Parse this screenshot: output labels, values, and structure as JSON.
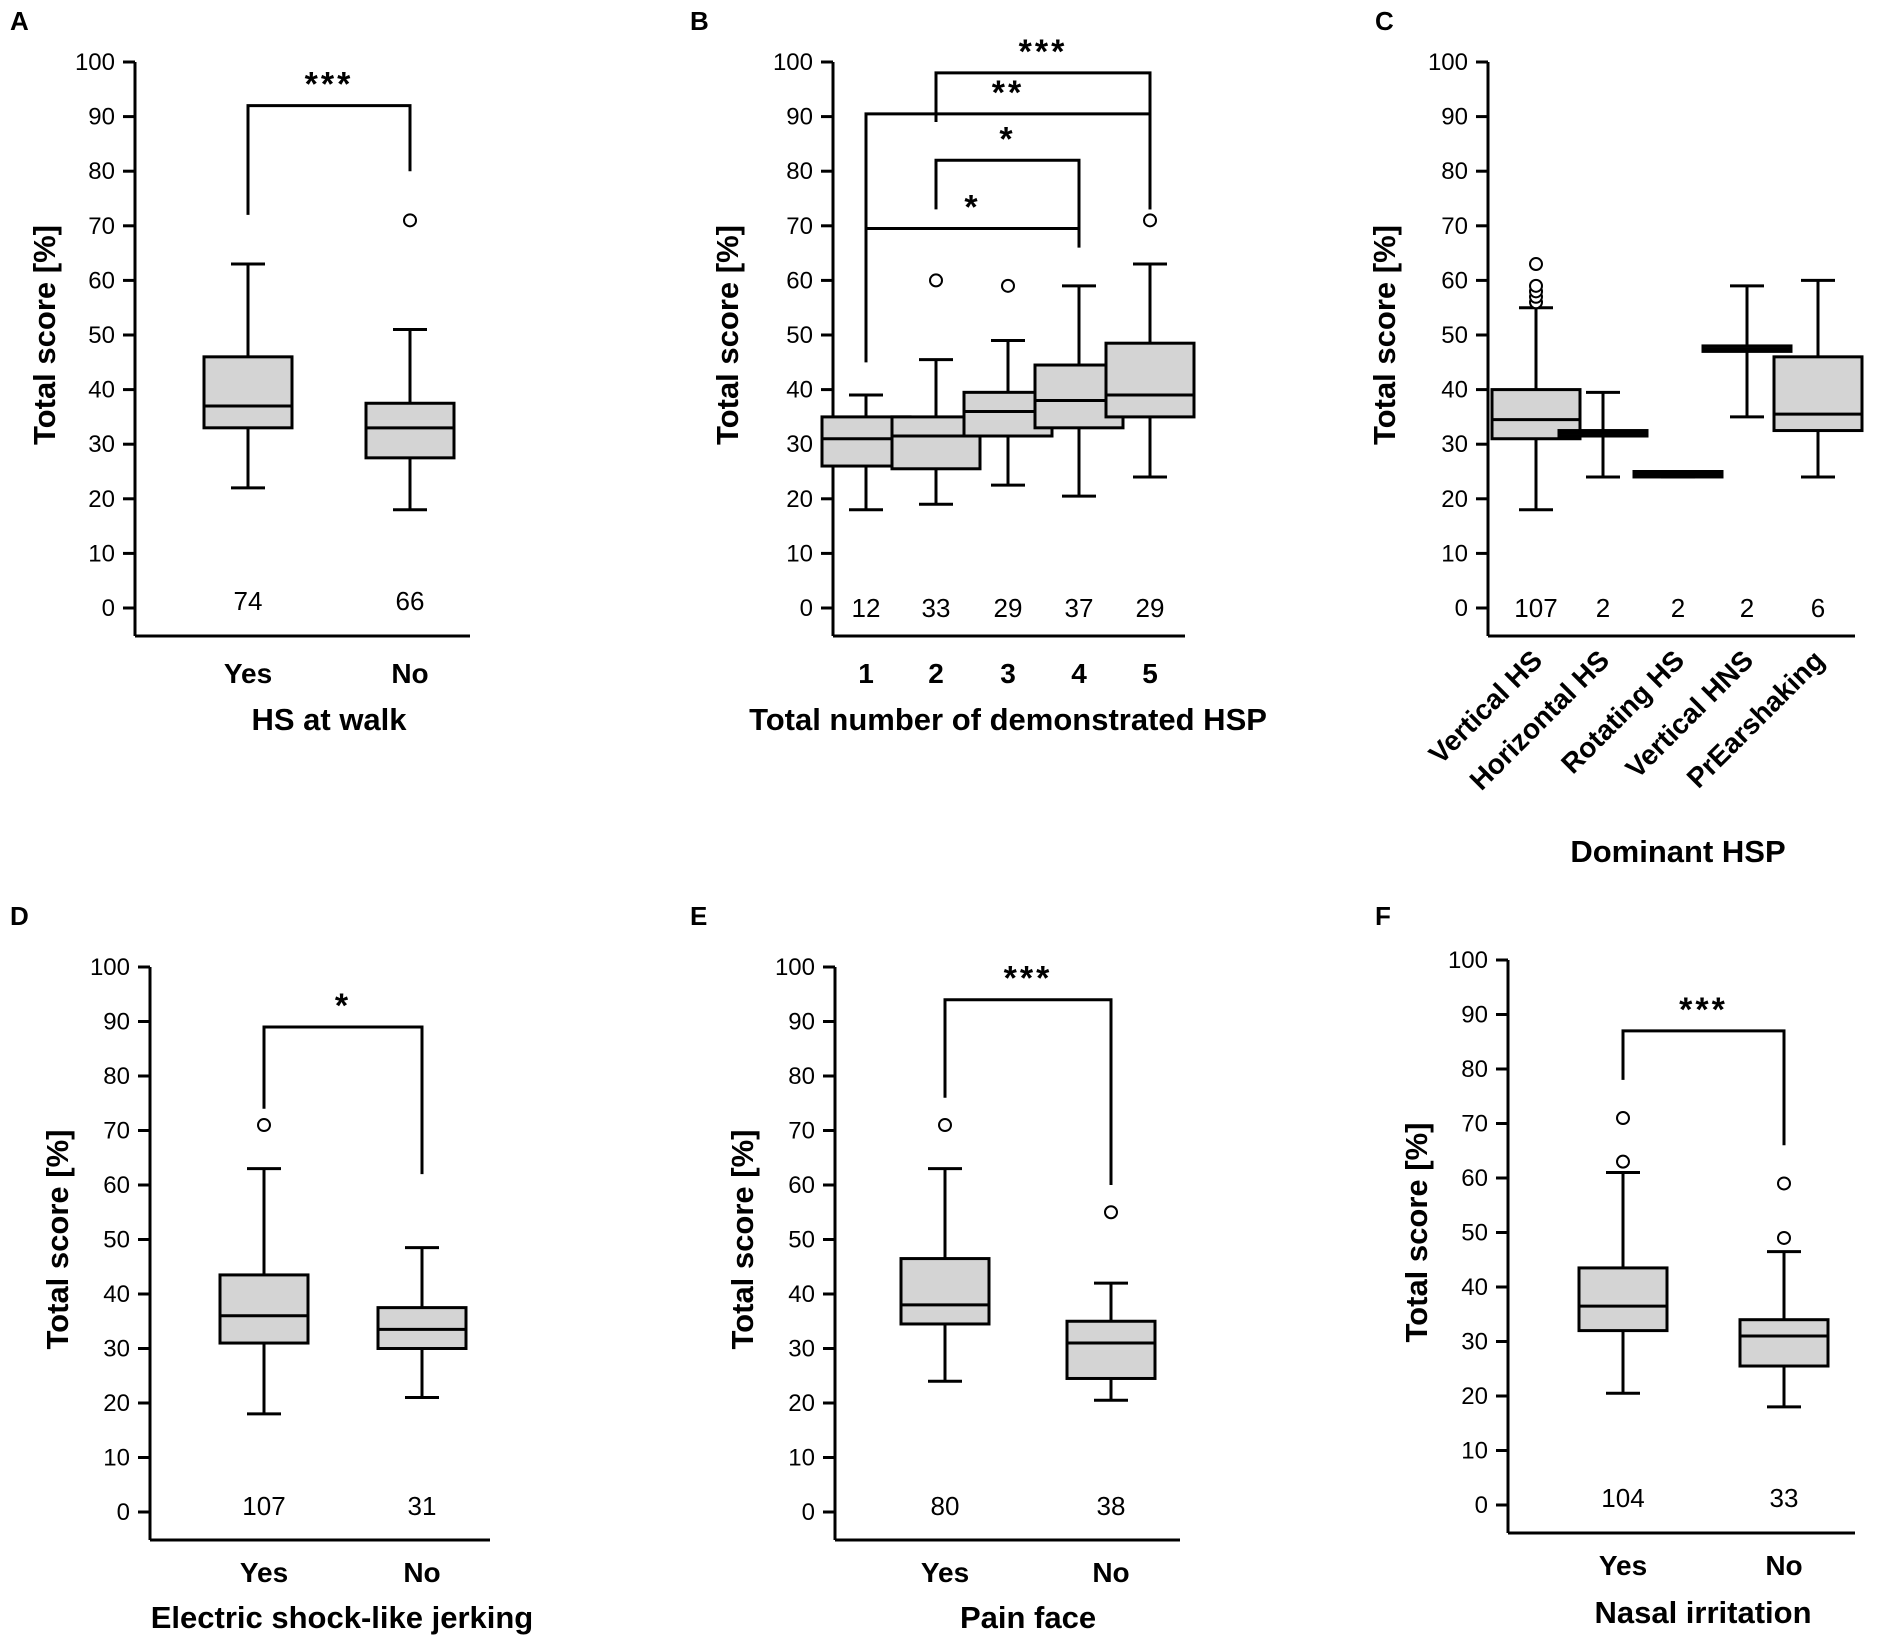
{
  "chart_data": [
    {
      "type": "box",
      "panel": "A",
      "ylabel": "Total score [%]",
      "xlabel": "HS at walk",
      "ylim": [
        0,
        100
      ],
      "yticks": [
        0,
        10,
        20,
        30,
        40,
        50,
        60,
        70,
        80,
        90,
        100
      ],
      "categories": [
        "Yes",
        "No"
      ],
      "n": [
        "74",
        "66"
      ],
      "boxes": [
        {
          "min": 22,
          "q1": 33,
          "median": 37,
          "q3": 46,
          "max": 63,
          "outliers": []
        },
        {
          "min": 18,
          "q1": 27.5,
          "median": 33,
          "q3": 37.5,
          "max": 51,
          "outliers": [
            71
          ]
        }
      ],
      "brackets": [
        {
          "from": 0,
          "to": 1,
          "y": 92,
          "left_end": 72,
          "right_end": 80,
          "label": "***"
        }
      ]
    },
    {
      "type": "box",
      "panel": "B",
      "ylabel": "Total score [%]",
      "xlabel": "Total number of demonstrated HSP",
      "ylim": [
        0,
        100
      ],
      "yticks": [
        0,
        10,
        20,
        30,
        40,
        50,
        60,
        70,
        80,
        90,
        100
      ],
      "categories": [
        "1",
        "2",
        "3",
        "4",
        "5"
      ],
      "n": [
        "12",
        "33",
        "29",
        "37",
        "29"
      ],
      "boxes": [
        {
          "min": 18,
          "q1": 26,
          "median": 31,
          "q3": 35,
          "max": 39,
          "outliers": []
        },
        {
          "min": 19,
          "q1": 25.5,
          "median": 31.5,
          "q3": 35,
          "max": 45.5,
          "outliers": [
            60
          ]
        },
        {
          "min": 22.5,
          "q1": 31.5,
          "median": 36,
          "q3": 39.5,
          "max": 49,
          "outliers": [
            59
          ]
        },
        {
          "min": 20.5,
          "q1": 33,
          "median": 38,
          "q3": 44.5,
          "max": 59,
          "outliers": []
        },
        {
          "min": 24,
          "q1": 35,
          "median": 39,
          "q3": 48.5,
          "max": 63,
          "outliers": [
            71
          ]
        }
      ],
      "brackets": [
        {
          "from": 1,
          "to": 4,
          "y": 98,
          "left_end": 89,
          "right_end": 73,
          "label": "***"
        },
        {
          "from": 0,
          "to": 4,
          "y": 90.5,
          "left_end": 45,
          "right_end": 73,
          "label": "**"
        },
        {
          "from": 1,
          "to": 3,
          "y": 82,
          "left_end": 73,
          "right_end": 69.5,
          "label": "*"
        },
        {
          "from": 0,
          "to": 3,
          "y": 69.5,
          "left_end": 45,
          "right_end": 66,
          "label": "*"
        }
      ]
    },
    {
      "type": "box",
      "panel": "C",
      "ylabel": "Total score [%]",
      "xlabel": "Dominant HSP",
      "ylim": [
        0,
        100
      ],
      "yticks": [
        0,
        10,
        20,
        30,
        40,
        50,
        60,
        70,
        80,
        90,
        100
      ],
      "categories": [
        "Vertical HS",
        "Horizontal HS",
        "Rotating HS",
        "Vertical HNS",
        "PrEarshaking"
      ],
      "n": [
        "107",
        "2",
        "2",
        "2",
        "6"
      ],
      "boxes": [
        {
          "min": 18,
          "q1": 31,
          "median": 34.5,
          "q3": 40,
          "max": 55,
          "outliers": [
            56,
            57,
            58,
            59,
            63
          ]
        },
        {
          "min": 24,
          "q1": 31.5,
          "median": 32,
          "q3": 32.5,
          "max": 39.5,
          "outliers": []
        },
        {
          "min": 24,
          "q1": 24,
          "median": 24.5,
          "q3": 25,
          "max": 25,
          "outliers": []
        },
        {
          "min": 35,
          "q1": 47,
          "median": 47.5,
          "q3": 48,
          "max": 59,
          "outliers": []
        },
        {
          "min": 24,
          "q1": 32.5,
          "median": 35.5,
          "q3": 46,
          "max": 60,
          "outliers": []
        }
      ],
      "brackets": []
    },
    {
      "type": "box",
      "panel": "D",
      "ylabel": "Total score [%]",
      "xlabel": "Electric shock-like jerking",
      "ylim": [
        0,
        100
      ],
      "yticks": [
        0,
        10,
        20,
        30,
        40,
        50,
        60,
        70,
        80,
        90,
        100
      ],
      "categories": [
        "Yes",
        "No"
      ],
      "n": [
        "107",
        "31"
      ],
      "boxes": [
        {
          "min": 18,
          "q1": 31,
          "median": 36,
          "q3": 43.5,
          "max": 63,
          "outliers": [
            71
          ]
        },
        {
          "min": 21,
          "q1": 30,
          "median": 33.5,
          "q3": 37.5,
          "max": 48.5,
          "outliers": []
        }
      ],
      "brackets": [
        {
          "from": 0,
          "to": 1,
          "y": 89,
          "left_end": 74,
          "right_end": 62,
          "label": "*"
        }
      ]
    },
    {
      "type": "box",
      "panel": "E",
      "ylabel": "Total score [%]",
      "xlabel": "Pain face",
      "ylim": [
        0,
        100
      ],
      "yticks": [
        0,
        10,
        20,
        30,
        40,
        50,
        60,
        70,
        80,
        90,
        100
      ],
      "categories": [
        "Yes",
        "No"
      ],
      "n": [
        "80",
        "38"
      ],
      "boxes": [
        {
          "min": 24,
          "q1": 34.5,
          "median": 38,
          "q3": 46.5,
          "max": 63,
          "outliers": [
            71
          ]
        },
        {
          "min": 20.5,
          "q1": 24.5,
          "median": 31,
          "q3": 35,
          "max": 42,
          "outliers": [
            55
          ]
        }
      ],
      "brackets": [
        {
          "from": 0,
          "to": 1,
          "y": 94,
          "left_end": 76,
          "right_end": 60,
          "label": "***"
        }
      ]
    },
    {
      "type": "box",
      "panel": "F",
      "ylabel": "Total score [%]",
      "xlabel": "Nasal irritation",
      "ylim": [
        0,
        100
      ],
      "yticks": [
        0,
        10,
        20,
        30,
        40,
        50,
        60,
        70,
        80,
        90,
        100
      ],
      "categories": [
        "Yes",
        "No"
      ],
      "n": [
        "104",
        "33"
      ],
      "boxes": [
        {
          "min": 20.5,
          "q1": 32,
          "median": 36.5,
          "q3": 43.5,
          "max": 61,
          "outliers": [
            63,
            71
          ]
        },
        {
          "min": 18,
          "q1": 25.5,
          "median": 31,
          "q3": 34,
          "max": 46.5,
          "outliers": [
            49,
            59
          ]
        }
      ],
      "brackets": [
        {
          "from": 0,
          "to": 1,
          "y": 87,
          "left_end": 78,
          "right_end": 66,
          "label": "***"
        }
      ]
    }
  ]
}
